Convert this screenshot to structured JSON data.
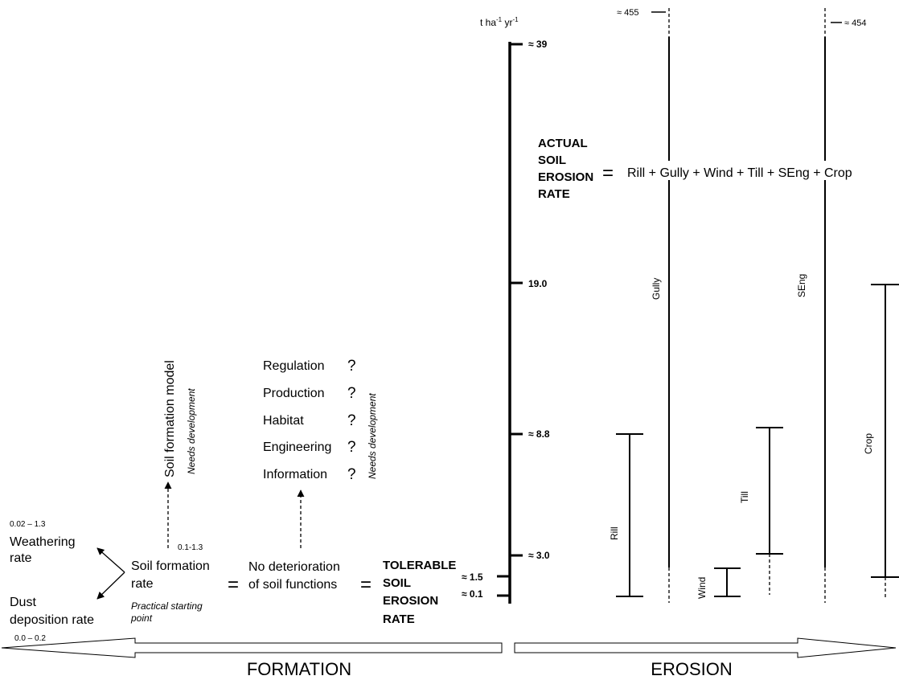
{
  "axis": {
    "unit_prefix": "t ha",
    "unit_exp1": "-1",
    "unit_mid": " yr",
    "unit_exp2": "-1",
    "ticks": [
      "≈ 39",
      "19.0",
      "≈ 8.8",
      "≈ 3.0",
      "≈ 1.5",
      "≈ 0.1"
    ]
  },
  "top_values": {
    "left": "≈ 455",
    "right": "≈ 454"
  },
  "actual": {
    "lines": [
      "ACTUAL",
      "SOIL",
      "EROSION",
      "RATE"
    ],
    "equals": "=",
    "equation": "Rill + Gully + Wind + Till + SEng + Crop"
  },
  "erosion_components": {
    "gully": "Gully",
    "seng": "SEng",
    "crop": "Crop",
    "till": "Till",
    "rill": "Rill",
    "wind": "Wind"
  },
  "formation": {
    "weathering_range": "0.02 – 1.3",
    "weathering": [
      "Weathering",
      "rate"
    ],
    "dust": [
      "Dust",
      "deposition rate"
    ],
    "dust_range": "0.0 – 0.2",
    "soil_formation": [
      "Soil formation",
      "rate"
    ],
    "formation_range": "0.1-1.3",
    "practical": [
      "Practical starting",
      "point"
    ],
    "model_label": "Soil formation model",
    "needs_dev": "Needs development",
    "equals1": "=",
    "no_det": [
      "No deterioration",
      "of soil functions"
    ],
    "equals2": "=",
    "functions": [
      "Regulation",
      "Production",
      "Habitat",
      "Engineering",
      "Information"
    ],
    "question": "?",
    "needs_dev2": "Needs development",
    "tolerable": [
      "TOLERABLE",
      "SOIL",
      "EROSION",
      "RATE"
    ]
  },
  "arrows": {
    "left_label": "FORMATION",
    "right_label": "EROSION"
  }
}
